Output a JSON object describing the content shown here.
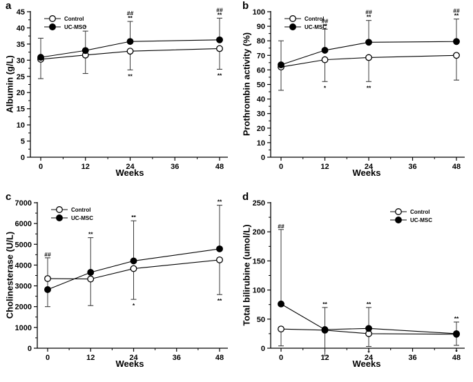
{
  "figure": {
    "background": "#ffffff",
    "ink": "#000000",
    "error_bar_color": "#3a3a3a",
    "marker_open_fill": "#ffffff",
    "marker_filled_fill": "#000000"
  },
  "chart_data": [
    {
      "panel": "a",
      "type": "line",
      "xlabel": "Weeks",
      "ylabel": "Albumin (g/L)",
      "x_data": [
        0,
        12,
        24,
        48
      ],
      "xticks": {
        "major": [
          0,
          12,
          24,
          36,
          48
        ],
        "labels": [
          "0",
          "12",
          "24",
          "36",
          "48"
        ],
        "minor": [
          6,
          18,
          30,
          42
        ]
      },
      "xlim": [
        0,
        48
      ],
      "ylim": [
        0,
        45
      ],
      "yticks": [
        "0",
        "5",
        "10",
        "15",
        "20",
        "25",
        "30",
        "35",
        "40",
        "45"
      ],
      "grid": false,
      "legend": {
        "position": "top-left"
      },
      "series": [
        {
          "name": "Control",
          "marker": "open-circle",
          "y": [
            30.3,
            31.6,
            32.8,
            33.6
          ],
          "err_lo": [
            24.3,
            25.9,
            27.0,
            27.2
          ],
          "err_hi": [
            null,
            null,
            null,
            null
          ],
          "ann_above": [
            null,
            null,
            null,
            null
          ],
          "ann_below": [
            null,
            null,
            [
              "**"
            ],
            [
              "**"
            ]
          ]
        },
        {
          "name": "UC-MSC",
          "marker": "filled-circle",
          "y": [
            30.9,
            33.0,
            35.8,
            36.3
          ],
          "err_lo": [
            null,
            null,
            null,
            null
          ],
          "err_hi": [
            36.8,
            39.0,
            42.0,
            43.0
          ],
          "ann_above": [
            null,
            [
              "*"
            ],
            [
              "##",
              "**"
            ],
            [
              "##",
              "**"
            ]
          ],
          "ann_below": [
            null,
            null,
            null,
            null
          ]
        }
      ]
    },
    {
      "panel": "b",
      "type": "line",
      "xlabel": "Weeks",
      "ylabel": "Prothrombin activity (%)",
      "x_data": [
        0,
        12,
        24,
        48
      ],
      "xticks": {
        "major": [
          0,
          12,
          24,
          36,
          48
        ],
        "labels": [
          "0",
          "12",
          "24",
          "36",
          "48"
        ],
        "minor": [
          6,
          18,
          30,
          42
        ]
      },
      "xlim": [
        0,
        48
      ],
      "ylim": [
        0,
        100
      ],
      "yticks": [
        "0",
        "10",
        "20",
        "30",
        "40",
        "50",
        "60",
        "70",
        "80",
        "90",
        "100"
      ],
      "grid": false,
      "legend": {
        "position": "top-left"
      },
      "series": [
        {
          "name": "Control",
          "marker": "open-circle",
          "y": [
            62,
            67,
            68.5,
            70
          ],
          "err_lo": [
            46,
            52,
            52,
            53
          ],
          "err_hi": [
            80,
            null,
            null,
            null
          ],
          "ann_above": [
            null,
            null,
            null,
            null
          ],
          "ann_below": [
            null,
            [
              "*"
            ],
            [
              "**"
            ],
            null
          ]
        },
        {
          "name": "UC-MSC",
          "marker": "filled-circle",
          "y": [
            63.5,
            73.5,
            79,
            79.5
          ],
          "err_lo": [
            null,
            null,
            null,
            null
          ],
          "err_hi": [
            null,
            88,
            94,
            95
          ],
          "ann_above": [
            null,
            [
              "##",
              "**"
            ],
            [
              "##",
              "**"
            ],
            [
              "##",
              "**"
            ]
          ],
          "ann_below": [
            null,
            null,
            null,
            null
          ]
        }
      ]
    },
    {
      "panel": "c",
      "type": "line",
      "xlabel": "Weeks",
      "ylabel": "Cholinesterase (U/L)",
      "x_data": [
        0,
        12,
        24,
        48
      ],
      "xticks": {
        "major": [
          0,
          12,
          24,
          36,
          48
        ],
        "labels": [
          "0",
          "12",
          "24",
          "36",
          "48"
        ],
        "minor": [
          6,
          18,
          30,
          42
        ]
      },
      "xlim": [
        0,
        48
      ],
      "ylim": [
        0,
        7000
      ],
      "yticks": [
        "0",
        "1000",
        "2000",
        "3000",
        "4000",
        "5000",
        "6000",
        "7000"
      ],
      "grid": false,
      "legend": {
        "position": "top-left"
      },
      "series": [
        {
          "name": "Control",
          "marker": "open-circle",
          "y": [
            3350,
            3330,
            3830,
            4250
          ],
          "err_lo": [
            2000,
            2050,
            2350,
            2580
          ],
          "err_hi": [
            4350,
            null,
            null,
            null
          ],
          "ann_above": [
            [
              "##"
            ],
            null,
            null,
            null
          ],
          "ann_below": [
            null,
            null,
            [
              "*"
            ],
            [
              "**"
            ]
          ]
        },
        {
          "name": "UC-MSC",
          "marker": "filled-circle",
          "y": [
            2820,
            3650,
            4200,
            4780
          ],
          "err_lo": [
            null,
            null,
            null,
            null
          ],
          "err_hi": [
            null,
            5320,
            6130,
            6880
          ],
          "ann_above": [
            null,
            [
              "**"
            ],
            [
              "**"
            ],
            [
              "**"
            ]
          ],
          "ann_below": [
            null,
            null,
            null,
            null
          ]
        }
      ]
    },
    {
      "panel": "d",
      "type": "line",
      "xlabel": "Weeks",
      "ylabel": "Total bilirubine (umol/L)",
      "x_data": [
        0,
        12,
        24,
        48
      ],
      "xticks": {
        "major": [
          0,
          12,
          24,
          36,
          48
        ],
        "labels": [
          "0",
          "12",
          "24",
          "36",
          "48"
        ],
        "minor": [
          6,
          18,
          30,
          42
        ]
      },
      "xlim": [
        0,
        48
      ],
      "ylim": [
        0,
        250
      ],
      "yticks": [
        "0",
        "50",
        "100",
        "150",
        "200",
        "250"
      ],
      "grid": false,
      "legend": {
        "position": "top-right"
      },
      "series": [
        {
          "name": "Control",
          "marker": "open-circle",
          "y": [
            33,
            31,
            25,
            24
          ],
          "err_lo": [
            4,
            -13,
            3,
            5
          ],
          "err_hi": [
            null,
            null,
            null,
            null
          ],
          "ann_above": [
            null,
            null,
            null,
            null
          ],
          "ann_below": [
            null,
            null,
            [
              "*"
            ],
            [
              "*"
            ]
          ]
        },
        {
          "name": "UC-MSC",
          "marker": "filled-circle",
          "y": [
            76,
            32,
            34,
            25
          ],
          "err_lo": [
            null,
            null,
            null,
            null
          ],
          "err_hi": [
            204,
            70,
            70,
            45
          ],
          "ann_above": [
            [
              "##"
            ],
            [
              "**"
            ],
            [
              "**"
            ],
            [
              "**"
            ]
          ],
          "ann_below": [
            null,
            null,
            null,
            null
          ]
        }
      ]
    }
  ]
}
